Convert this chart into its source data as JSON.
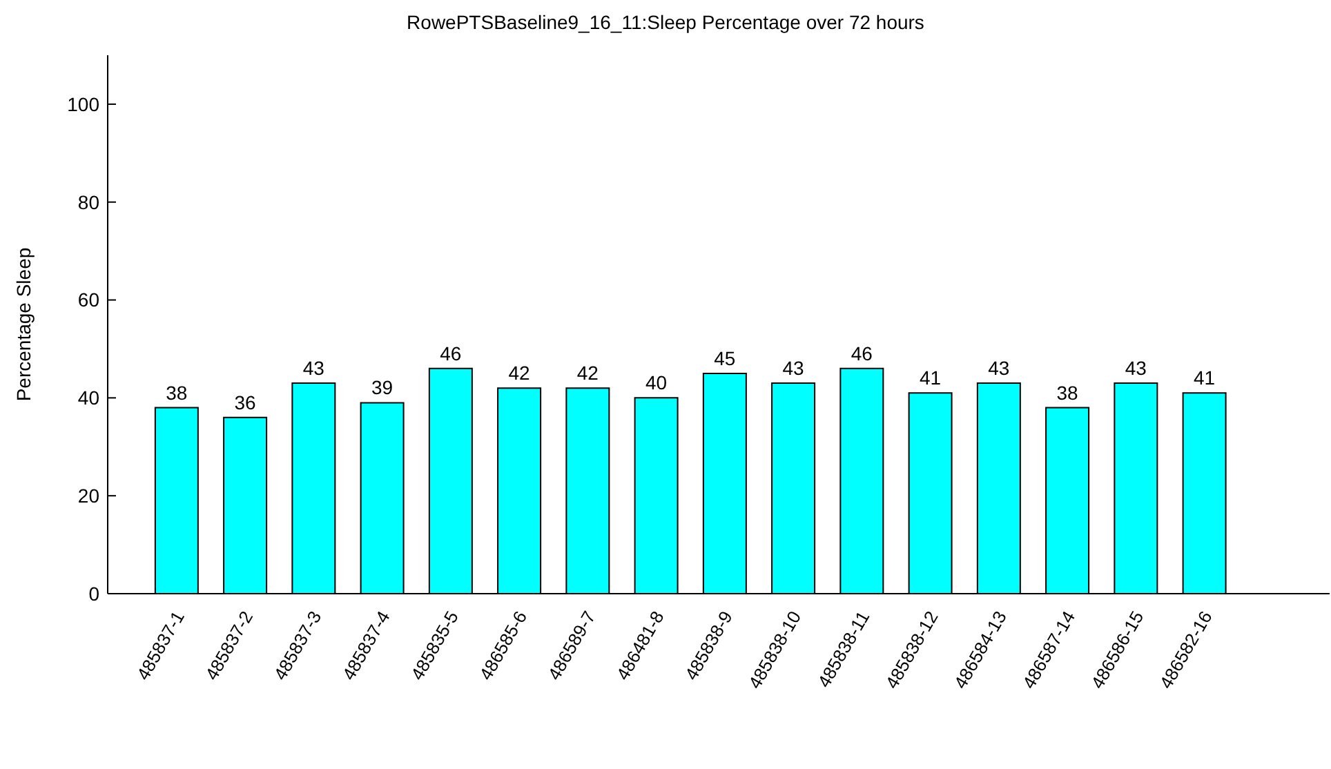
{
  "chart_data": {
    "type": "bar",
    "title": "RowePTSBaseline9_16_11:Sleep Percentage over 72 hours",
    "ylabel": "Percentage Sleep",
    "categories": [
      "485837-1",
      "485837-2",
      "485837-3",
      "485837-4",
      "485835-5",
      "486585-6",
      "486589-7",
      "486481-8",
      "485838-9",
      "485838-10",
      "485838-11",
      "485838-12",
      "486584-13",
      "486587-14",
      "486586-15",
      "486582-16"
    ],
    "values": [
      38,
      36,
      43,
      39,
      46,
      42,
      42,
      40,
      45,
      43,
      46,
      41,
      43,
      38,
      43,
      41
    ],
    "color": "#00ffff",
    "ylim": [
      0,
      110
    ],
    "yticks": [
      0,
      20,
      40,
      60,
      80,
      100
    ],
    "grid": false,
    "legend": false,
    "data_labels": true
  }
}
